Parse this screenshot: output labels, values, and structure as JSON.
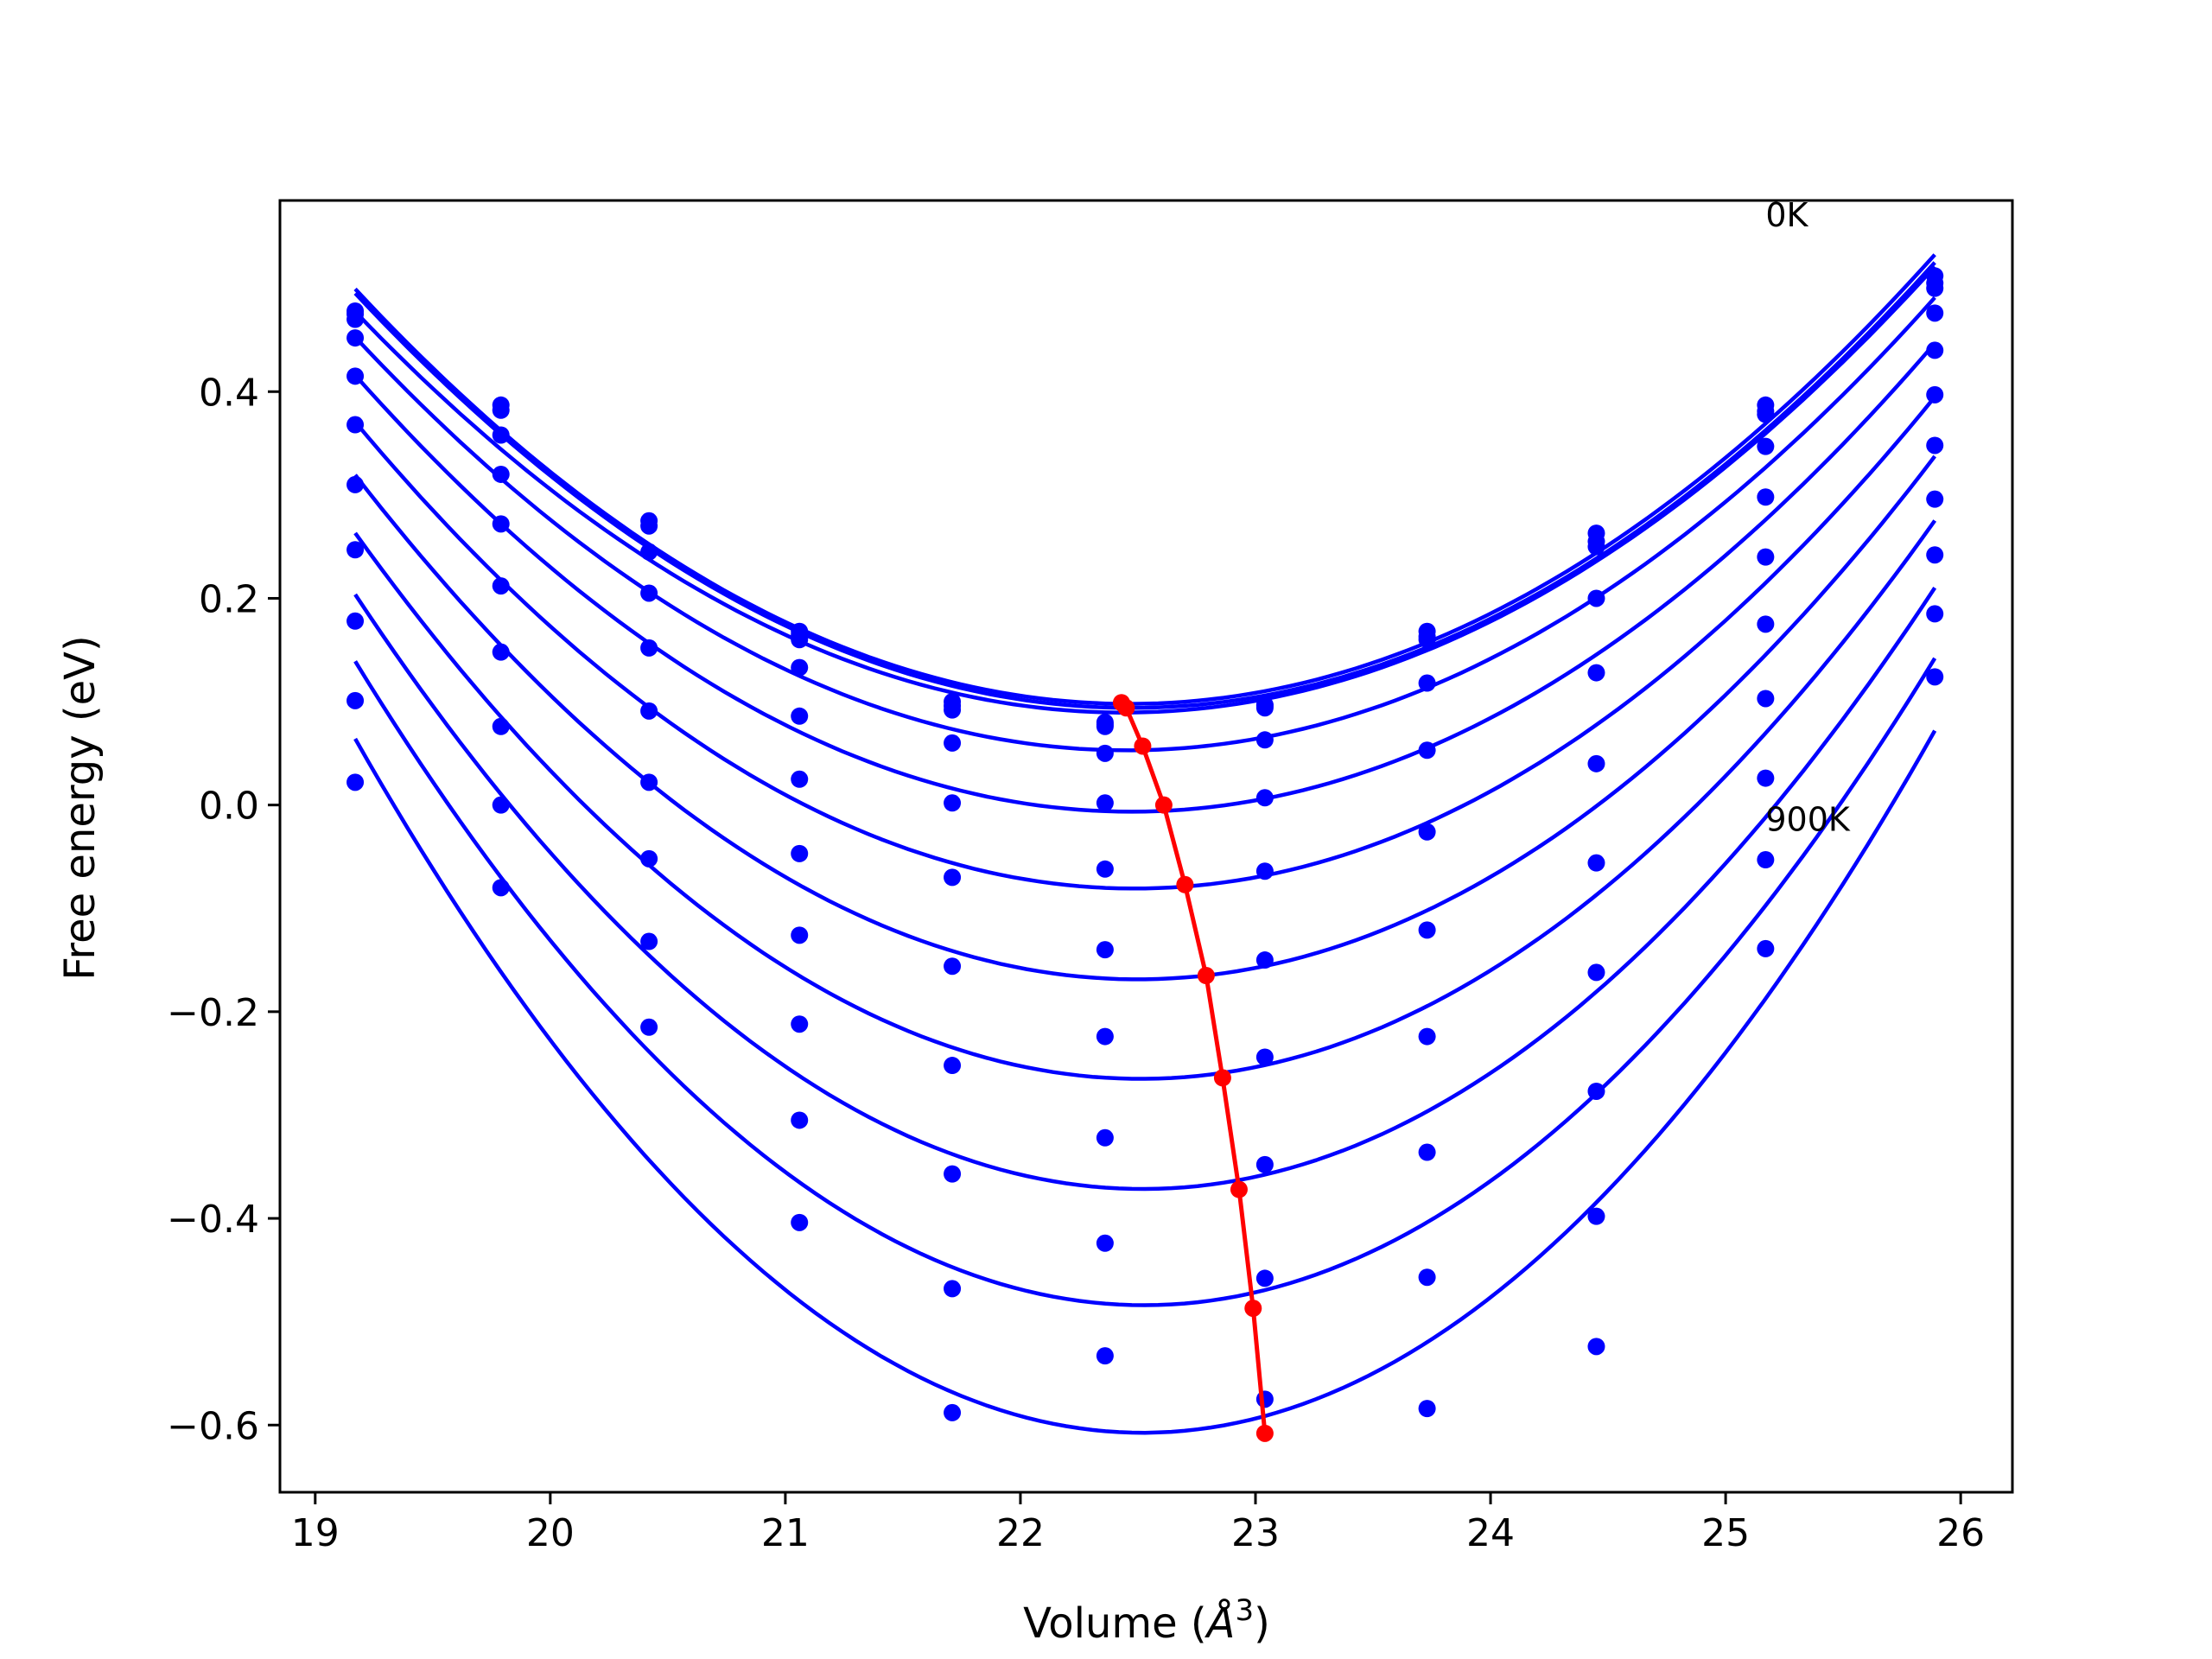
{
  "chart_data": {
    "type": "scatter",
    "title": "",
    "xlabel": "Volume",
    "xlabel_unit_base": "Å",
    "xlabel_unit_sup": "3",
    "ylabel": "Free energy (eV)",
    "xlim": [
      18.85,
      26.22
    ],
    "ylim": [
      -0.665,
      0.585
    ],
    "x_ticks": [
      19,
      20,
      21,
      22,
      23,
      24,
      25,
      26
    ],
    "y_ticks": [
      -0.6,
      -0.4,
      -0.2,
      0.0,
      0.2,
      0.4
    ],
    "y_tick_labels": [
      "−0.6",
      "−0.4",
      "−0.2",
      "0.0",
      "0.2",
      "0.4"
    ],
    "grid": false,
    "annotations": [
      {
        "text": "0K",
        "x": 25.17,
        "y": 0.56
      },
      {
        "text": "900K",
        "x": 25.17,
        "y": -0.025
      }
    ],
    "volumes": [
      19.17,
      19.79,
      20.42,
      21.06,
      21.71,
      22.36,
      23.04,
      23.73,
      24.45,
      25.17,
      25.89
    ],
    "series": [
      {
        "values": [
          0.478,
          0.387,
          0.275,
          0.168,
          0.1,
          0.08,
          0.097,
          0.168,
          0.263,
          0.387,
          0.512
        ]
      },
      {
        "values": [
          0.475,
          0.382,
          0.27,
          0.165,
          0.096,
          0.078,
          0.094,
          0.163,
          0.255,
          0.381,
          0.505
        ]
      },
      {
        "values": [
          0.47,
          0.358,
          0.245,
          0.16,
          0.092,
          0.076,
          0.096,
          0.16,
          0.25,
          0.378,
          0.5
        ]
      },
      {
        "values": [
          0.452,
          0.32,
          0.205,
          0.133,
          0.06,
          0.05,
          0.063,
          0.118,
          0.2,
          0.347,
          0.476
        ]
      },
      {
        "values": [
          0.415,
          0.272,
          0.152,
          0.086,
          0.002,
          0.002,
          0.007,
          0.053,
          0.128,
          0.298,
          0.44
        ]
      },
      {
        "values": [
          0.368,
          0.212,
          0.091,
          0.025,
          -0.07,
          -0.062,
          -0.064,
          -0.026,
          0.04,
          0.24,
          0.397
        ]
      },
      {
        "values": [
          0.31,
          0.148,
          0.022,
          -0.047,
          -0.156,
          -0.14,
          -0.15,
          -0.121,
          -0.056,
          0.175,
          0.348
        ]
      },
      {
        "values": [
          0.247,
          0.076,
          -0.052,
          -0.126,
          -0.252,
          -0.224,
          -0.244,
          -0.224,
          -0.162,
          0.103,
          0.296
        ]
      },
      {
        "values": [
          0.178,
          0.0,
          -0.132,
          -0.212,
          -0.357,
          -0.322,
          -0.348,
          -0.336,
          -0.277,
          0.026,
          0.242
        ]
      },
      {
        "values": [
          0.101,
          -0.08,
          -0.215,
          -0.305,
          -0.468,
          -0.424,
          -0.458,
          -0.457,
          -0.398,
          -0.053,
          0.185
        ]
      },
      {
        "values": [
          0.022,
          null,
          null,
          -0.404,
          -0.588,
          -0.533,
          -0.575,
          -0.584,
          -0.524,
          -0.139,
          0.124
        ]
      }
    ],
    "fit_minima": {
      "x": [
        22.43,
        22.45,
        22.52,
        22.61,
        22.7,
        22.79,
        22.86,
        22.93,
        22.99,
        23.04
      ],
      "y": [
        0.099,
        0.094,
        0.057,
        0.0,
        -0.077,
        -0.165,
        -0.264,
        -0.372,
        -0.487,
        -0.608
      ]
    },
    "colors": {
      "fits": "#0000ff",
      "points": "#0000ff",
      "minima": "#ff0000",
      "axes": "#000000"
    }
  }
}
